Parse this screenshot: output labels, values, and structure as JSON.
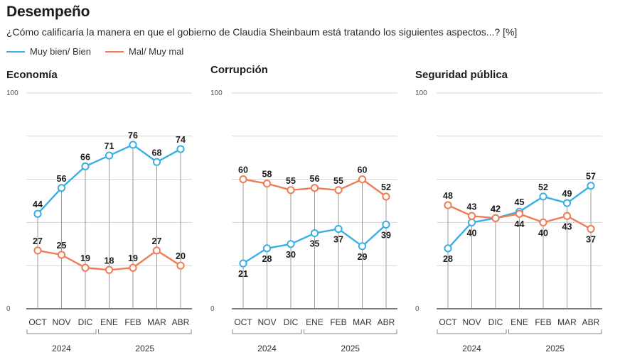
{
  "header": {
    "title": "Desempeño",
    "subtitle": "¿Cómo calificaría la manera en que el gobierno de Claudia Sheinbaum está tratando los siguientes aspectos...?  [%]"
  },
  "legend": {
    "items": [
      {
        "label": "Muy bien/ Bien",
        "color": "#3ab0e2"
      },
      {
        "label": "Mal/ Muy mal",
        "color": "#f07c55"
      }
    ]
  },
  "colors": {
    "positive": "#3ab0e2",
    "negative": "#f07c55",
    "grid": "#d6d6d6",
    "drop": "#9a9a9a"
  },
  "years": [
    {
      "label": "2024",
      "from": 0,
      "to": 2
    },
    {
      "label": "2025",
      "from": 3,
      "to": 6
    }
  ],
  "chart_data": [
    {
      "type": "line",
      "title": "Economía",
      "categories": [
        "OCT",
        "NOV",
        "DIC",
        "ENE",
        "FEB",
        "MAR",
        "ABR"
      ],
      "ylim": [
        0,
        100
      ],
      "yticks": [
        "0",
        "100"
      ],
      "grid": true,
      "series": [
        {
          "name": "Muy bien/ Bien",
          "values": [
            44,
            56,
            66,
            71,
            76,
            68,
            74
          ]
        },
        {
          "name": "Mal/ Muy mal",
          "values": [
            27,
            25,
            19,
            18,
            19,
            27,
            20
          ]
        }
      ]
    },
    {
      "type": "line",
      "title": "Corrupción",
      "categories": [
        "OCT",
        "NOV",
        "DIC",
        "ENE",
        "FEB",
        "MAR",
        "ABR"
      ],
      "ylim": [
        0,
        100
      ],
      "yticks": [
        "0",
        "100"
      ],
      "grid": true,
      "series": [
        {
          "name": "Muy bien/ Bien",
          "values": [
            21,
            28,
            30,
            35,
            37,
            29,
            39
          ]
        },
        {
          "name": "Mal/ Muy mal",
          "values": [
            60,
            58,
            55,
            56,
            55,
            60,
            52
          ]
        }
      ]
    },
    {
      "type": "line",
      "title": "Seguridad pública",
      "categories": [
        "OCT",
        "NOV",
        "DIC",
        "ENE",
        "FEB",
        "MAR",
        "ABR"
      ],
      "ylim": [
        0,
        100
      ],
      "yticks": [
        "0",
        "100"
      ],
      "grid": true,
      "series": [
        {
          "name": "Muy bien/ Bien",
          "values": [
            28,
            40,
            42,
            45,
            52,
            49,
            57
          ]
        },
        {
          "name": "Mal/ Muy mal",
          "values": [
            48,
            43,
            42,
            44,
            40,
            43,
            37
          ]
        }
      ]
    }
  ]
}
